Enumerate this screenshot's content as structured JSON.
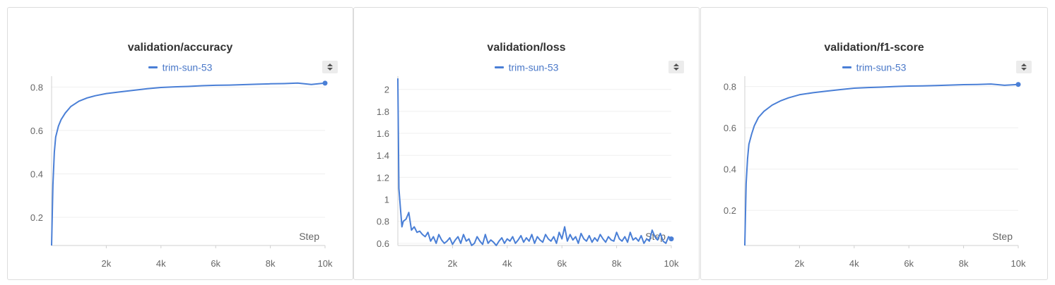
{
  "colors": {
    "series": "#4a7fd6",
    "raw": "#dfe7f5",
    "grid": "#efefef",
    "axis": "#d0d0d0"
  },
  "legend_run": "trim-sun-53",
  "sort_icon": "sort-arrows-icon",
  "chart_data": [
    {
      "type": "line",
      "title": "validation/accuracy",
      "xlabel": "Step",
      "ylabel": "",
      "xlim": [
        0,
        10000
      ],
      "ylim": [
        0.07,
        0.85
      ],
      "xticks": [
        2000,
        4000,
        6000,
        8000,
        10000
      ],
      "xtick_labels": [
        "2k",
        "4k",
        "6k",
        "8k",
        "10k"
      ],
      "yticks": [
        0.2,
        0.4,
        0.6,
        0.8
      ],
      "ytick_labels": [
        "0.2",
        "0.4",
        "0.6",
        "0.8"
      ],
      "legend": "top-center",
      "grid": true,
      "series": [
        {
          "name": "trim-sun-53",
          "x": [
            0,
            50,
            100,
            150,
            250,
            350,
            500,
            700,
            1000,
            1300,
            1600,
            2000,
            2500,
            3000,
            3500,
            4000,
            4500,
            5000,
            5500,
            6000,
            6500,
            7000,
            7500,
            8000,
            8500,
            9000,
            9500,
            10000
          ],
          "values": [
            0.07,
            0.35,
            0.5,
            0.57,
            0.62,
            0.65,
            0.68,
            0.71,
            0.735,
            0.75,
            0.76,
            0.77,
            0.778,
            0.785,
            0.792,
            0.798,
            0.801,
            0.803,
            0.806,
            0.808,
            0.809,
            0.811,
            0.813,
            0.815,
            0.816,
            0.818,
            0.812,
            0.818
          ]
        }
      ]
    },
    {
      "type": "line",
      "title": "validation/loss",
      "xlabel": "Step",
      "ylabel": "",
      "xlim": [
        0,
        10000
      ],
      "ylim": [
        0.58,
        2.12
      ],
      "xticks": [
        2000,
        4000,
        6000,
        8000,
        10000
      ],
      "xtick_labels": [
        "2k",
        "4k",
        "6k",
        "8k",
        "10k"
      ],
      "yticks": [
        0.6,
        0.8,
        1,
        1.2,
        1.4,
        1.6,
        1.8,
        2
      ],
      "ytick_labels": [
        "0.6",
        "0.8",
        "1",
        "1.2",
        "1.4",
        "1.6",
        "1.8",
        "2"
      ],
      "legend": "top-center",
      "grid": true,
      "series": [
        {
          "name": "trim-sun-53",
          "x": [
            0,
            40,
            100,
            150,
            200,
            300,
            400,
            500,
            600,
            700,
            800,
            900,
            1000,
            1100,
            1200,
            1300,
            1400,
            1500,
            1600,
            1700,
            1800,
            1900,
            2000,
            2100,
            2200,
            2300,
            2400,
            2500,
            2600,
            2700,
            2800,
            2900,
            3000,
            3100,
            3200,
            3300,
            3400,
            3500,
            3600,
            3700,
            3800,
            3900,
            4000,
            4100,
            4200,
            4300,
            4400,
            4500,
            4600,
            4700,
            4800,
            4900,
            5000,
            5100,
            5200,
            5300,
            5400,
            5500,
            5600,
            5700,
            5800,
            5900,
            6000,
            6100,
            6200,
            6300,
            6400,
            6500,
            6600,
            6700,
            6800,
            6900,
            7000,
            7100,
            7200,
            7300,
            7400,
            7500,
            7600,
            7700,
            7800,
            7900,
            8000,
            8100,
            8200,
            8300,
            8400,
            8500,
            8600,
            8700,
            8800,
            8900,
            9000,
            9100,
            9200,
            9300,
            9400,
            9500,
            9600,
            9700,
            9800,
            9900,
            10000
          ],
          "values": [
            2.1,
            1.1,
            0.9,
            0.75,
            0.8,
            0.82,
            0.88,
            0.72,
            0.75,
            0.7,
            0.71,
            0.68,
            0.66,
            0.7,
            0.62,
            0.66,
            0.6,
            0.68,
            0.63,
            0.6,
            0.62,
            0.65,
            0.59,
            0.63,
            0.66,
            0.6,
            0.68,
            0.62,
            0.64,
            0.58,
            0.6,
            0.66,
            0.62,
            0.59,
            0.68,
            0.6,
            0.63,
            0.61,
            0.58,
            0.62,
            0.65,
            0.6,
            0.64,
            0.62,
            0.66,
            0.6,
            0.63,
            0.67,
            0.61,
            0.65,
            0.62,
            0.68,
            0.6,
            0.66,
            0.63,
            0.61,
            0.68,
            0.64,
            0.62,
            0.66,
            0.6,
            0.7,
            0.64,
            0.75,
            0.62,
            0.68,
            0.63,
            0.66,
            0.6,
            0.69,
            0.64,
            0.62,
            0.67,
            0.61,
            0.65,
            0.62,
            0.68,
            0.64,
            0.61,
            0.66,
            0.63,
            0.62,
            0.7,
            0.64,
            0.62,
            0.66,
            0.61,
            0.7,
            0.63,
            0.65,
            0.62,
            0.67,
            0.6,
            0.64,
            0.62,
            0.72,
            0.66,
            0.63,
            0.69,
            0.62,
            0.6,
            0.66,
            0.64
          ]
        }
      ]
    },
    {
      "type": "line",
      "title": "validation/f1-score",
      "xlabel": "Step",
      "ylabel": "",
      "xlim": [
        0,
        10000
      ],
      "ylim": [
        0.03,
        0.85
      ],
      "xticks": [
        2000,
        4000,
        6000,
        8000,
        10000
      ],
      "xtick_labels": [
        "2k",
        "4k",
        "6k",
        "8k",
        "10k"
      ],
      "yticks": [
        0.2,
        0.4,
        0.6,
        0.8
      ],
      "ytick_labels": [
        "0.2",
        "0.4",
        "0.6",
        "0.8"
      ],
      "legend": "top-center",
      "grid": true,
      "series": [
        {
          "name": "trim-sun-53",
          "x": [
            0,
            50,
            100,
            150,
            250,
            350,
            500,
            700,
            1000,
            1300,
            1600,
            2000,
            2500,
            3000,
            3500,
            4000,
            4500,
            5000,
            5500,
            6000,
            6500,
            7000,
            7500,
            8000,
            8500,
            9000,
            9500,
            10000
          ],
          "values": [
            0.03,
            0.33,
            0.45,
            0.52,
            0.57,
            0.61,
            0.65,
            0.68,
            0.71,
            0.73,
            0.745,
            0.76,
            0.77,
            0.778,
            0.785,
            0.792,
            0.795,
            0.797,
            0.8,
            0.802,
            0.803,
            0.805,
            0.807,
            0.809,
            0.81,
            0.812,
            0.806,
            0.81
          ]
        }
      ]
    }
  ]
}
